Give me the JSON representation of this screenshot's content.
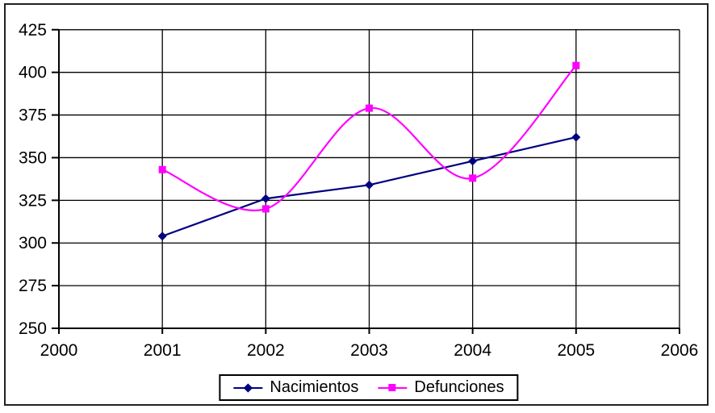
{
  "chart_data": {
    "type": "line",
    "x": [
      2001,
      2002,
      2003,
      2004,
      2005
    ],
    "series": [
      {
        "name": "Nacimientos",
        "color": "#000080",
        "marker": "diamond",
        "smooth": false,
        "values": [
          304,
          326,
          334,
          348,
          362
        ]
      },
      {
        "name": "Defunciones",
        "color": "#FF00FF",
        "marker": "square",
        "smooth": true,
        "values": [
          343,
          320,
          379,
          338,
          404
        ]
      }
    ],
    "x_axis": {
      "min": 2000,
      "max": 2006,
      "tick_step": 1,
      "tick_labels": [
        "2000",
        "2001",
        "2002",
        "2003",
        "2004",
        "2005",
        "2006"
      ]
    },
    "y_axis": {
      "min": 250,
      "max": 425,
      "tick_step": 25,
      "tick_labels": [
        "250",
        "275",
        "300",
        "325",
        "350",
        "375",
        "400",
        "425"
      ]
    },
    "grid": true,
    "legend_position": "bottom"
  },
  "legend": {
    "items": [
      {
        "label": "Nacimientos"
      },
      {
        "label": "Defunciones"
      }
    ]
  },
  "colors": {
    "background": "#FFFFFF",
    "border": "#222222",
    "grid": "#000000",
    "axis": "#000000",
    "text": "#000000",
    "nacimientos": "#000080",
    "defunciones": "#FF00FF"
  }
}
